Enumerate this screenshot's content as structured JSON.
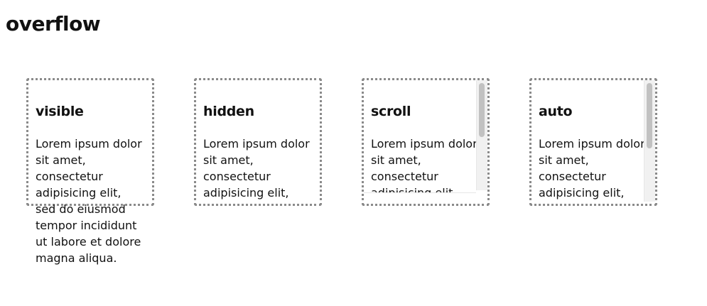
{
  "page": {
    "title": "overflow"
  },
  "boxes": [
    {
      "heading": "visible",
      "text": "Lorem ipsum dolor sit amet, consectetur adipisicing elit, sed do eiusmod tempor incididunt ut labore et dolore magna aliqua."
    },
    {
      "heading": "hidden",
      "text": "Lorem ipsum dolor sit amet, consectetur adipisicing elit, sed do eiusmod tempor incididunt ut labore et dolore magna aliqua."
    },
    {
      "heading": "scroll",
      "text": "Lorem ipsum dolor sit amet, consectetur adipisicing elit, sed do eiusmod tempor incididunt ut labore et dolore magna aliqua."
    },
    {
      "heading": "auto",
      "text": "Lorem ipsum dolor sit amet, consectetur adipisicing elit, sed do eiusmod tempor incididunt ut labore et dolore magna aliqua."
    }
  ],
  "colors": {
    "border": "#8a8a8a",
    "scrollbar_thumb": "#c1c1c1",
    "scrollbar_track": "#f1f1f1"
  }
}
